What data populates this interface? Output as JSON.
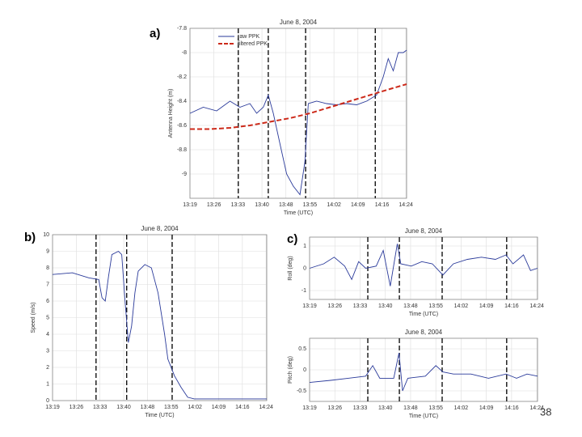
{
  "panel_labels": [
    "a)",
    "b)",
    "c)"
  ],
  "page_number": "38",
  "chart_data": [
    {
      "type": "line",
      "title": "June 8, 2004",
      "xlabel": "Time (UTC)",
      "ylabel": "Antenna Height (m)",
      "xlim": [
        799,
        864
      ],
      "xticks": [
        {
          "value": 799,
          "label": "13:19"
        },
        {
          "value": 806.2,
          "label": "13:26"
        },
        {
          "value": 813.4,
          "label": "13:33"
        },
        {
          "value": 820.6,
          "label": "13:40"
        },
        {
          "value": 827.8,
          "label": "13:48"
        },
        {
          "value": 835,
          "label": "13:55"
        },
        {
          "value": 842.2,
          "label": "14:02"
        },
        {
          "value": 849.4,
          "label": "14:09"
        },
        {
          "value": 856.6,
          "label": "14:16"
        },
        {
          "value": 863.8,
          "label": "14:24"
        }
      ],
      "ylim": [
        -9.2,
        -7.8
      ],
      "yticks": [
        -7.8,
        -8,
        -8.2,
        -8.4,
        -8.6,
        -8.8,
        -9
      ],
      "grid": true,
      "legend": "top-left",
      "vlines": [
        813.5,
        822.5,
        833.7,
        854.6
      ],
      "series": [
        {
          "name": "raw PPK",
          "color": "#2a3a9a",
          "dashed": false,
          "x": [
            799,
            803,
            807,
            811,
            814,
            817,
            819,
            821,
            822.5,
            824,
            826,
            828,
            830,
            832,
            833.5,
            834.5,
            837,
            840,
            843,
            846,
            849,
            852,
            855,
            857,
            858.5,
            860,
            861.5,
            863,
            864
          ],
          "values": [
            -8.5,
            -8.45,
            -8.48,
            -8.4,
            -8.45,
            -8.42,
            -8.5,
            -8.45,
            -8.35,
            -8.5,
            -8.75,
            -9.0,
            -9.1,
            -9.17,
            -8.9,
            -8.42,
            -8.4,
            -8.42,
            -8.43,
            -8.42,
            -8.43,
            -8.4,
            -8.35,
            -8.2,
            -8.05,
            -8.15,
            -8.0,
            -8.0,
            -7.98
          ]
        },
        {
          "name": "filtered PPK",
          "color": "#cc2a1a",
          "dashed": true,
          "x": [
            799,
            805,
            811,
            817,
            823,
            829,
            835,
            841,
            847,
            853,
            859,
            864
          ],
          "values": [
            -8.63,
            -8.63,
            -8.62,
            -8.6,
            -8.57,
            -8.54,
            -8.5,
            -8.45,
            -8.4,
            -8.35,
            -8.3,
            -8.26
          ]
        }
      ]
    },
    {
      "type": "line",
      "title": "June 8, 2004",
      "xlabel": "Time (UTC)",
      "ylabel": "Speed (m/s)",
      "xlim": [
        799,
        864
      ],
      "xticks": [
        {
          "value": 799,
          "label": "13:19"
        },
        {
          "value": 806.2,
          "label": "13:26"
        },
        {
          "value": 813.4,
          "label": "13:33"
        },
        {
          "value": 820.6,
          "label": "13:40"
        },
        {
          "value": 827.8,
          "label": "13:48"
        },
        {
          "value": 835,
          "label": "13:55"
        },
        {
          "value": 842.2,
          "label": "14:02"
        },
        {
          "value": 849.4,
          "label": "14:09"
        },
        {
          "value": 856.6,
          "label": "14:16"
        },
        {
          "value": 863.8,
          "label": "14:24"
        }
      ],
      "ylim": [
        0,
        10
      ],
      "yticks": [
        0,
        1,
        2,
        3,
        4,
        5,
        6,
        7,
        8,
        9,
        10
      ],
      "grid": true,
      "vlines": [
        812.2,
        821.5,
        835.3
      ],
      "series": [
        {
          "color": "#2a3a9a",
          "dashed": false,
          "x": [
            799,
            805,
            810,
            813,
            814,
            815,
            816,
            817,
            819,
            820,
            821,
            822,
            823,
            824,
            825,
            827,
            829,
            831,
            833,
            834,
            836,
            838,
            840,
            842,
            850,
            864
          ],
          "values": [
            7.6,
            7.7,
            7.4,
            7.3,
            6.2,
            6.0,
            7.5,
            8.8,
            9.0,
            8.8,
            6.0,
            3.5,
            4.5,
            6.5,
            7.8,
            8.2,
            8.0,
            6.5,
            4.0,
            2.5,
            1.5,
            0.8,
            0.2,
            0.1,
            0.1,
            0.1
          ]
        }
      ]
    },
    {
      "type": "line",
      "title": "June 8, 2004",
      "xlabel": "Time (UTC)",
      "ylabel": "Roll (deg)",
      "xlim": [
        799,
        864
      ],
      "xticks": [
        {
          "value": 799,
          "label": "13:19"
        },
        {
          "value": 806.2,
          "label": "13:26"
        },
        {
          "value": 813.4,
          "label": "13:33"
        },
        {
          "value": 820.6,
          "label": "13:40"
        },
        {
          "value": 827.8,
          "label": "13:48"
        },
        {
          "value": 835,
          "label": "13:55"
        },
        {
          "value": 842.2,
          "label": "14:02"
        },
        {
          "value": 849.4,
          "label": "14:09"
        },
        {
          "value": 856.6,
          "label": "14:16"
        },
        {
          "value": 863.8,
          "label": "14:24"
        }
      ],
      "ylim": [
        -1.4,
        1.4
      ],
      "yticks": [
        -1,
        0,
        1
      ],
      "grid": true,
      "vlines": [
        815.6,
        824.6,
        836.8,
        855.2
      ],
      "series": [
        {
          "color": "#2a3a9a",
          "dashed": false,
          "x": [
            799,
            803,
            806,
            809,
            811,
            813,
            815,
            818,
            820,
            822,
            824,
            825,
            828,
            831,
            834,
            837,
            840,
            844,
            848,
            852,
            855,
            857,
            860,
            862,
            864
          ],
          "values": [
            0,
            0.2,
            0.5,
            0.1,
            -0.5,
            0.3,
            0,
            0.1,
            0.8,
            -0.8,
            1.1,
            0.2,
            0.1,
            0.3,
            0.2,
            -0.3,
            0.2,
            0.4,
            0.5,
            0.4,
            0.6,
            0.2,
            0.6,
            -0.1,
            0
          ]
        }
      ]
    },
    {
      "type": "line",
      "title": "June 8, 2004",
      "xlabel": "Time (UTC)",
      "ylabel": "Pitch (deg)",
      "xlim": [
        799,
        864
      ],
      "xticks": [
        {
          "value": 799,
          "label": "13:19"
        },
        {
          "value": 806.2,
          "label": "13:26"
        },
        {
          "value": 813.4,
          "label": "13:33"
        },
        {
          "value": 820.6,
          "label": "13:40"
        },
        {
          "value": 827.8,
          "label": "13:48"
        },
        {
          "value": 835,
          "label": "13:55"
        },
        {
          "value": 842.2,
          "label": "14:02"
        },
        {
          "value": 849.4,
          "label": "14:09"
        },
        {
          "value": 856.6,
          "label": "14:16"
        },
        {
          "value": 863.8,
          "label": "14:24"
        }
      ],
      "ylim": [
        -0.75,
        0.75
      ],
      "yticks": [
        -0.5,
        0,
        0.5
      ],
      "grid": true,
      "vlines": [
        815.6,
        824.6,
        836.8,
        855.2
      ],
      "series": [
        {
          "color": "#2a3a9a",
          "dashed": false,
          "x": [
            799,
            805,
            810,
            815,
            817,
            819,
            823,
            824.5,
            825.5,
            827,
            832,
            835,
            837,
            840,
            845,
            850,
            855,
            858,
            861,
            864
          ],
          "values": [
            -0.3,
            -0.25,
            -0.2,
            -0.15,
            0.1,
            -0.2,
            -0.2,
            0.4,
            -0.5,
            -0.2,
            -0.15,
            0.1,
            -0.05,
            -0.1,
            -0.1,
            -0.2,
            -0.1,
            -0.2,
            -0.1,
            -0.15
          ]
        }
      ]
    }
  ]
}
